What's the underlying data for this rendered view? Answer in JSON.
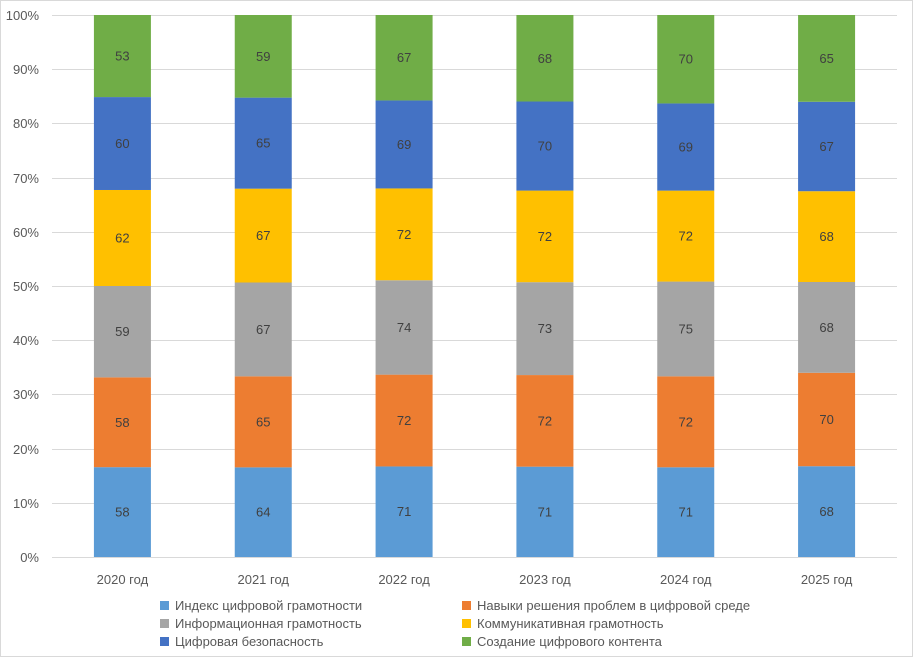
{
  "chart_data": {
    "type": "bar",
    "stacked": "percent",
    "title": "",
    "xlabel": "",
    "ylabel": "",
    "ylim": [
      0,
      100
    ],
    "yticks": [
      "0%",
      "10%",
      "20%",
      "30%",
      "40%",
      "50%",
      "60%",
      "70%",
      "80%",
      "90%",
      "100%"
    ],
    "grid": true,
    "legend_position": "bottom",
    "categories": [
      "2020 год",
      "2021 год",
      "2022 год",
      "2023 год",
      "2024 год",
      "2025 год"
    ],
    "series": [
      {
        "name": "Индекс цифровой грамотности",
        "color": "#5B9BD5",
        "values": [
          58,
          64,
          71,
          71,
          71,
          68
        ]
      },
      {
        "name": "Навыки решения проблем в цифровой среде",
        "color": "#ED7D31",
        "values": [
          58,
          65,
          72,
          72,
          72,
          70
        ]
      },
      {
        "name": "Информационная грамотность",
        "color": "#A5A5A5",
        "values": [
          59,
          67,
          74,
          73,
          75,
          68
        ]
      },
      {
        "name": "Коммуникативная грамотность",
        "color": "#FFC000",
        "values": [
          62,
          67,
          72,
          72,
          72,
          68
        ]
      },
      {
        "name": "Цифровая безопасность",
        "color": "#4472C4",
        "values": [
          60,
          65,
          69,
          70,
          69,
          67
        ]
      },
      {
        "name": "Создание цифрового контента",
        "color": "#70AD47",
        "values": [
          53,
          59,
          67,
          68,
          70,
          65
        ]
      }
    ]
  }
}
